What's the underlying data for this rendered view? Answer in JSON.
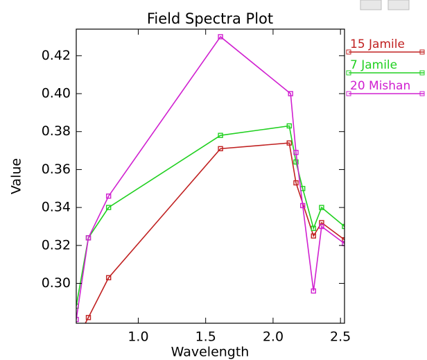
{
  "chart_data": {
    "type": "line",
    "title": "Field Spectra Plot",
    "x_label": "Wavelength",
    "y_label": "Value",
    "xlim": [
      0.54,
      2.53
    ],
    "ylim": [
      0.279,
      0.434
    ],
    "xticks": [
      {
        "value": 1.0,
        "label": "1.0"
      },
      {
        "value": 1.5,
        "label": "1.5"
      },
      {
        "value": 2.0,
        "label": "2.0"
      },
      {
        "value": 2.5,
        "label": "2.5"
      }
    ],
    "yticks": [
      {
        "value": 0.3,
        "label": "0.30"
      },
      0.32,
      0.34,
      0.36,
      0.38,
      {
        "value": 0.4,
        "label": "0.40"
      },
      0.42
    ],
    "series": [
      {
        "name": "15 Jamile",
        "color": "#c02020",
        "x": [
          0.54,
          0.63,
          0.78,
          1.61,
          2.12,
          2.17,
          2.3,
          2.36,
          2.53
        ],
        "values": [
          0.27,
          0.282,
          0.303,
          0.371,
          0.374,
          0.353,
          0.325,
          0.332,
          0.323
        ]
      },
      {
        "name": "7 Jamile",
        "color": "#20d020",
        "x": [
          0.54,
          0.63,
          0.78,
          1.61,
          2.12,
          2.17,
          2.22,
          2.3,
          2.36,
          2.53
        ],
        "values": [
          0.288,
          0.324,
          0.34,
          0.378,
          0.383,
          0.364,
          0.35,
          0.329,
          0.34,
          0.33
        ]
      },
      {
        "name": "20 Mishan",
        "color": "#d020d0",
        "x": [
          0.54,
          0.63,
          0.78,
          1.61,
          2.13,
          2.17,
          2.22,
          2.3,
          2.36,
          2.53
        ],
        "values": [
          0.281,
          0.324,
          0.346,
          0.43,
          0.4,
          0.369,
          0.341,
          0.296,
          0.33,
          0.321
        ]
      }
    ]
  }
}
